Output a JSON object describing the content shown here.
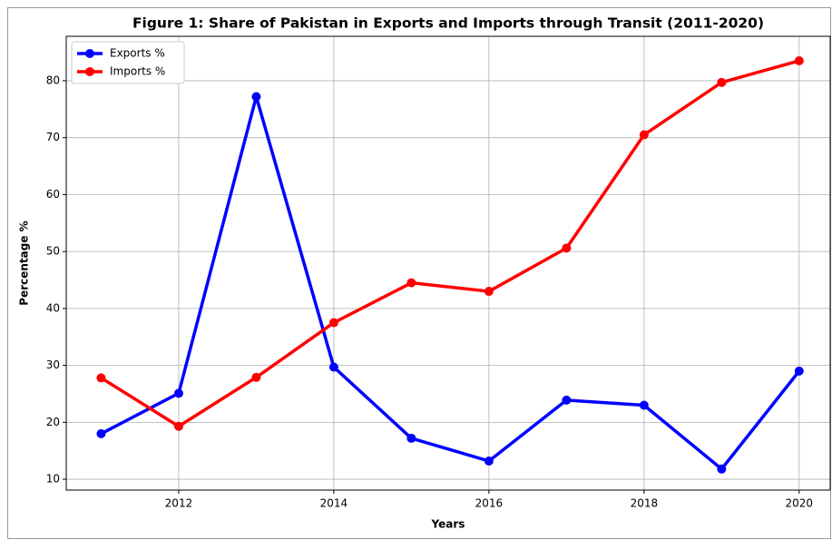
{
  "chart_data": {
    "type": "line",
    "title": "Figure 1: Share of Pakistan in Exports and Imports through Transit (2011-2020)",
    "x_label": "Years",
    "y_label": "Percentage %",
    "x": [
      2011,
      2012,
      2013,
      2014,
      2015,
      2016,
      2017,
      2018,
      2019,
      2020
    ],
    "series": [
      {
        "name": "Exports %",
        "color": "#0000ff",
        "values": [
          18.0,
          25.1,
          77.2,
          29.7,
          17.2,
          13.2,
          23.9,
          23.0,
          11.8,
          29.0
        ]
      },
      {
        "name": "Imports %",
        "color": "#ff0000",
        "values": [
          27.8,
          19.3,
          27.9,
          37.5,
          44.5,
          43.0,
          50.6,
          70.5,
          79.7,
          83.5
        ]
      }
    ],
    "xlim": [
      2010.55,
      2020.4
    ],
    "xticks": [
      2012,
      2014,
      2016,
      2018,
      2020
    ],
    "ylim": [
      8.1,
      87.8
    ],
    "yticks": [
      10,
      20,
      30,
      40,
      50,
      60,
      70,
      80
    ],
    "grid": true,
    "legend": "upper left"
  }
}
